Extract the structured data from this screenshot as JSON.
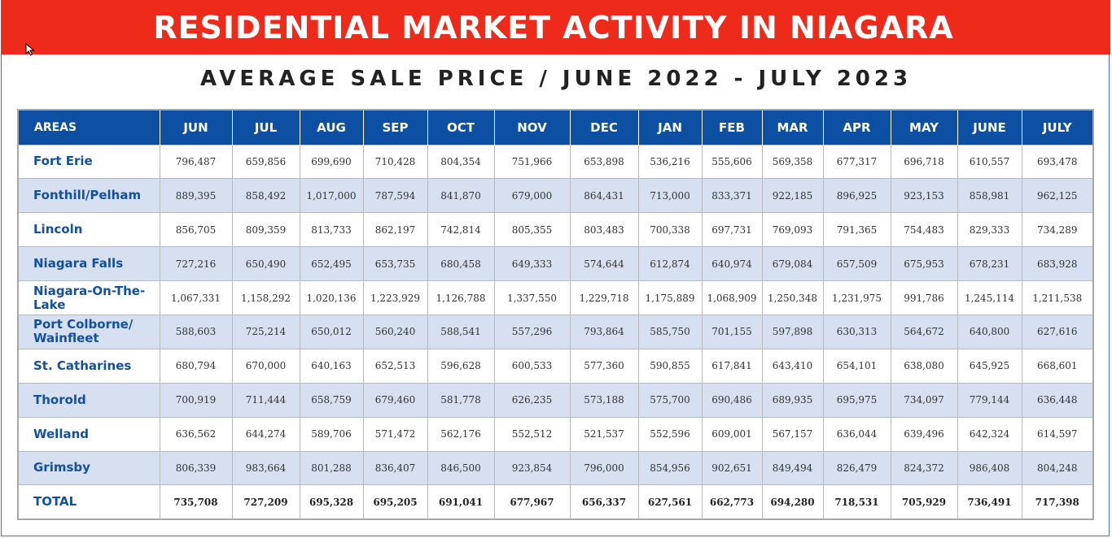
{
  "banner": {
    "title": "RESIDENTIAL MARKET ACTIVITY IN NIAGARA"
  },
  "subtitle": "AVERAGE SALE PRICE / JUNE 2022 - JULY 2023",
  "colors": {
    "banner": "#ee2a1a",
    "header": "#0d4fa3",
    "area_text": "#1450a0",
    "alt_row": "#d6e0f0"
  },
  "table": {
    "headers": [
      "AREAS",
      "JUN",
      "JUL",
      "AUG",
      "SEP",
      "OCT",
      "NOV",
      "DEC",
      "JAN",
      "FEB",
      "MAR",
      "APR",
      "MAY",
      "JUNE",
      "JULY"
    ],
    "rows": [
      {
        "area": "Fort Erie",
        "values": [
          "796,487",
          "659,856",
          "699,690",
          "710,428",
          "804,354",
          "751,966",
          "653,898",
          "536,216",
          "555,606",
          "569,358",
          "677,317",
          "696,718",
          "610,557",
          "693,478"
        ]
      },
      {
        "area": "Fonthill/Pelham",
        "values": [
          "889,395",
          "858,492",
          "1,017,000",
          "787,594",
          "841,870",
          "679,000",
          "864,431",
          "713,000",
          "833,371",
          "922,185",
          "896,925",
          "923,153",
          "858,981",
          "962,125"
        ]
      },
      {
        "area": "Lincoln",
        "values": [
          "856,705",
          "809,359",
          "813,733",
          "862,197",
          "742,814",
          "805,355",
          "803,483",
          "700,338",
          "697,731",
          "769,093",
          "791,365",
          "754,483",
          "829,333",
          "734,289"
        ]
      },
      {
        "area": "Niagara Falls",
        "values": [
          "727,216",
          "650,490",
          "652,495",
          "653,735",
          "680,458",
          "649,333",
          "574,644",
          "612,874",
          "640,974",
          "679,084",
          "657,509",
          "675,953",
          "678,231",
          "683,928"
        ]
      },
      {
        "area": "Niagara-On-The-Lake",
        "values": [
          "1,067,331",
          "1,158,292",
          "1,020,136",
          "1,223,929",
          "1,126,788",
          "1,337,550",
          "1,229,718",
          "1,175,889",
          "1,068,909",
          "1,250,348",
          "1,231,975",
          "991,786",
          "1,245,114",
          "1,211,538"
        ]
      },
      {
        "area": "Port Colborne/ Wainfleet",
        "values": [
          "588,603",
          "725,214",
          "650,012",
          "560,240",
          "588,541",
          "557,296",
          "793,864",
          "585,750",
          "701,155",
          "597,898",
          "630,313",
          "564,672",
          "640,800",
          "627,616"
        ]
      },
      {
        "area": "St. Catharines",
        "values": [
          "680,794",
          "670,000",
          "640,163",
          "652,513",
          "596,628",
          "600,533",
          "577,360",
          "590,855",
          "617,841",
          "643,410",
          "654,101",
          "638,080",
          "645,925",
          "668,601"
        ]
      },
      {
        "area": "Thorold",
        "values": [
          "700,919",
          "711,444",
          "658,759",
          "679,460",
          "581,778",
          "626,235",
          "573,188",
          "575,700",
          "690,486",
          "689,935",
          "695,975",
          "734,097",
          "779,144",
          "636,448"
        ]
      },
      {
        "area": "Welland",
        "values": [
          "636,562",
          "644,274",
          "589,706",
          "571,472",
          "562,176",
          "552,512",
          "521,537",
          "552,596",
          "609,001",
          "567,157",
          "636,044",
          "639,496",
          "642,324",
          "614,597"
        ]
      },
      {
        "area": "Grimsby",
        "values": [
          "806,339",
          "983,664",
          "801,288",
          "836,407",
          "846,500",
          "923,854",
          "796,000",
          "854,956",
          "902,651",
          "849,494",
          "826,479",
          "824,372",
          "986,408",
          "804,248"
        ]
      },
      {
        "area": "TOTAL",
        "values": [
          "735,708",
          "727,209",
          "695,328",
          "695,205",
          "691,041",
          "677,967",
          "656,337",
          "627,561",
          "662,773",
          "694,280",
          "718,531",
          "705,929",
          "736,491",
          "717,398"
        ]
      }
    ]
  }
}
